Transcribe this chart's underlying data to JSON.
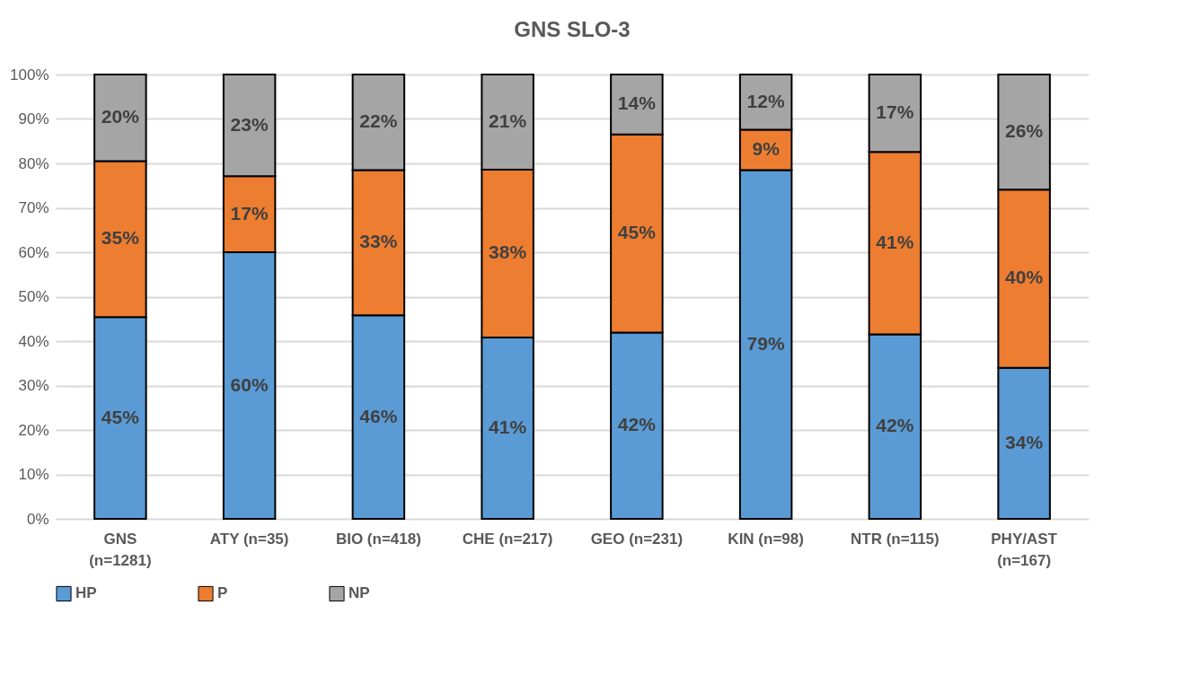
{
  "chart_data": {
    "type": "bar",
    "title": "GNS SLO-3",
    "stacked": true,
    "categories": [
      "GNS (n=1281)",
      "ATY (n=35)",
      "BIO (n=418)",
      "CHE (n=217)",
      "GEO (n=231)",
      "KIN (n=98)",
      "NTR (n=115)",
      "PHY/AST (n=167)"
    ],
    "series": [
      {
        "name": "HP",
        "color": "#5b9bd5",
        "values": [
          45.4,
          60,
          45.8,
          40.8,
          41.9,
          78.5,
          41.5,
          34
        ],
        "value_labels": [
          "45%",
          "60%",
          "46%",
          "41%",
          "42%",
          "79%",
          "42%",
          "34%"
        ]
      },
      {
        "name": "P",
        "color": "#ed7d31",
        "values": [
          35.1,
          17.1,
          32.7,
          37.8,
          44.6,
          9.1,
          41.1,
          40.1
        ],
        "value_labels": [
          "35%",
          "17%",
          "33%",
          "38%",
          "45%",
          "9%",
          "41%",
          "40%"
        ]
      },
      {
        "name": "NP",
        "color": "#a5a5a5",
        "values": [
          19.5,
          22.9,
          21.5,
          21.4,
          13.5,
          12.4,
          17.4,
          25.9
        ],
        "value_labels": [
          "20%",
          "23%",
          "22%",
          "21%",
          "14%",
          "12%",
          "17%",
          "26%"
        ]
      }
    ],
    "ylim": [
      0,
      100
    ],
    "yticks": [
      {
        "value": 0,
        "label": "0%"
      },
      {
        "value": 10,
        "label": "10%"
      },
      {
        "value": 20,
        "label": "20%"
      },
      {
        "value": 30,
        "label": "30%"
      },
      {
        "value": 40,
        "label": "40%"
      },
      {
        "value": 50,
        "label": "50%"
      },
      {
        "value": 60,
        "label": "60%"
      },
      {
        "value": 70,
        "label": "70%"
      },
      {
        "value": 80,
        "label": "80%"
      },
      {
        "value": 90,
        "label": "90%"
      },
      {
        "value": 100,
        "label": "100%"
      }
    ],
    "grid": "y",
    "legend": "bottom"
  }
}
